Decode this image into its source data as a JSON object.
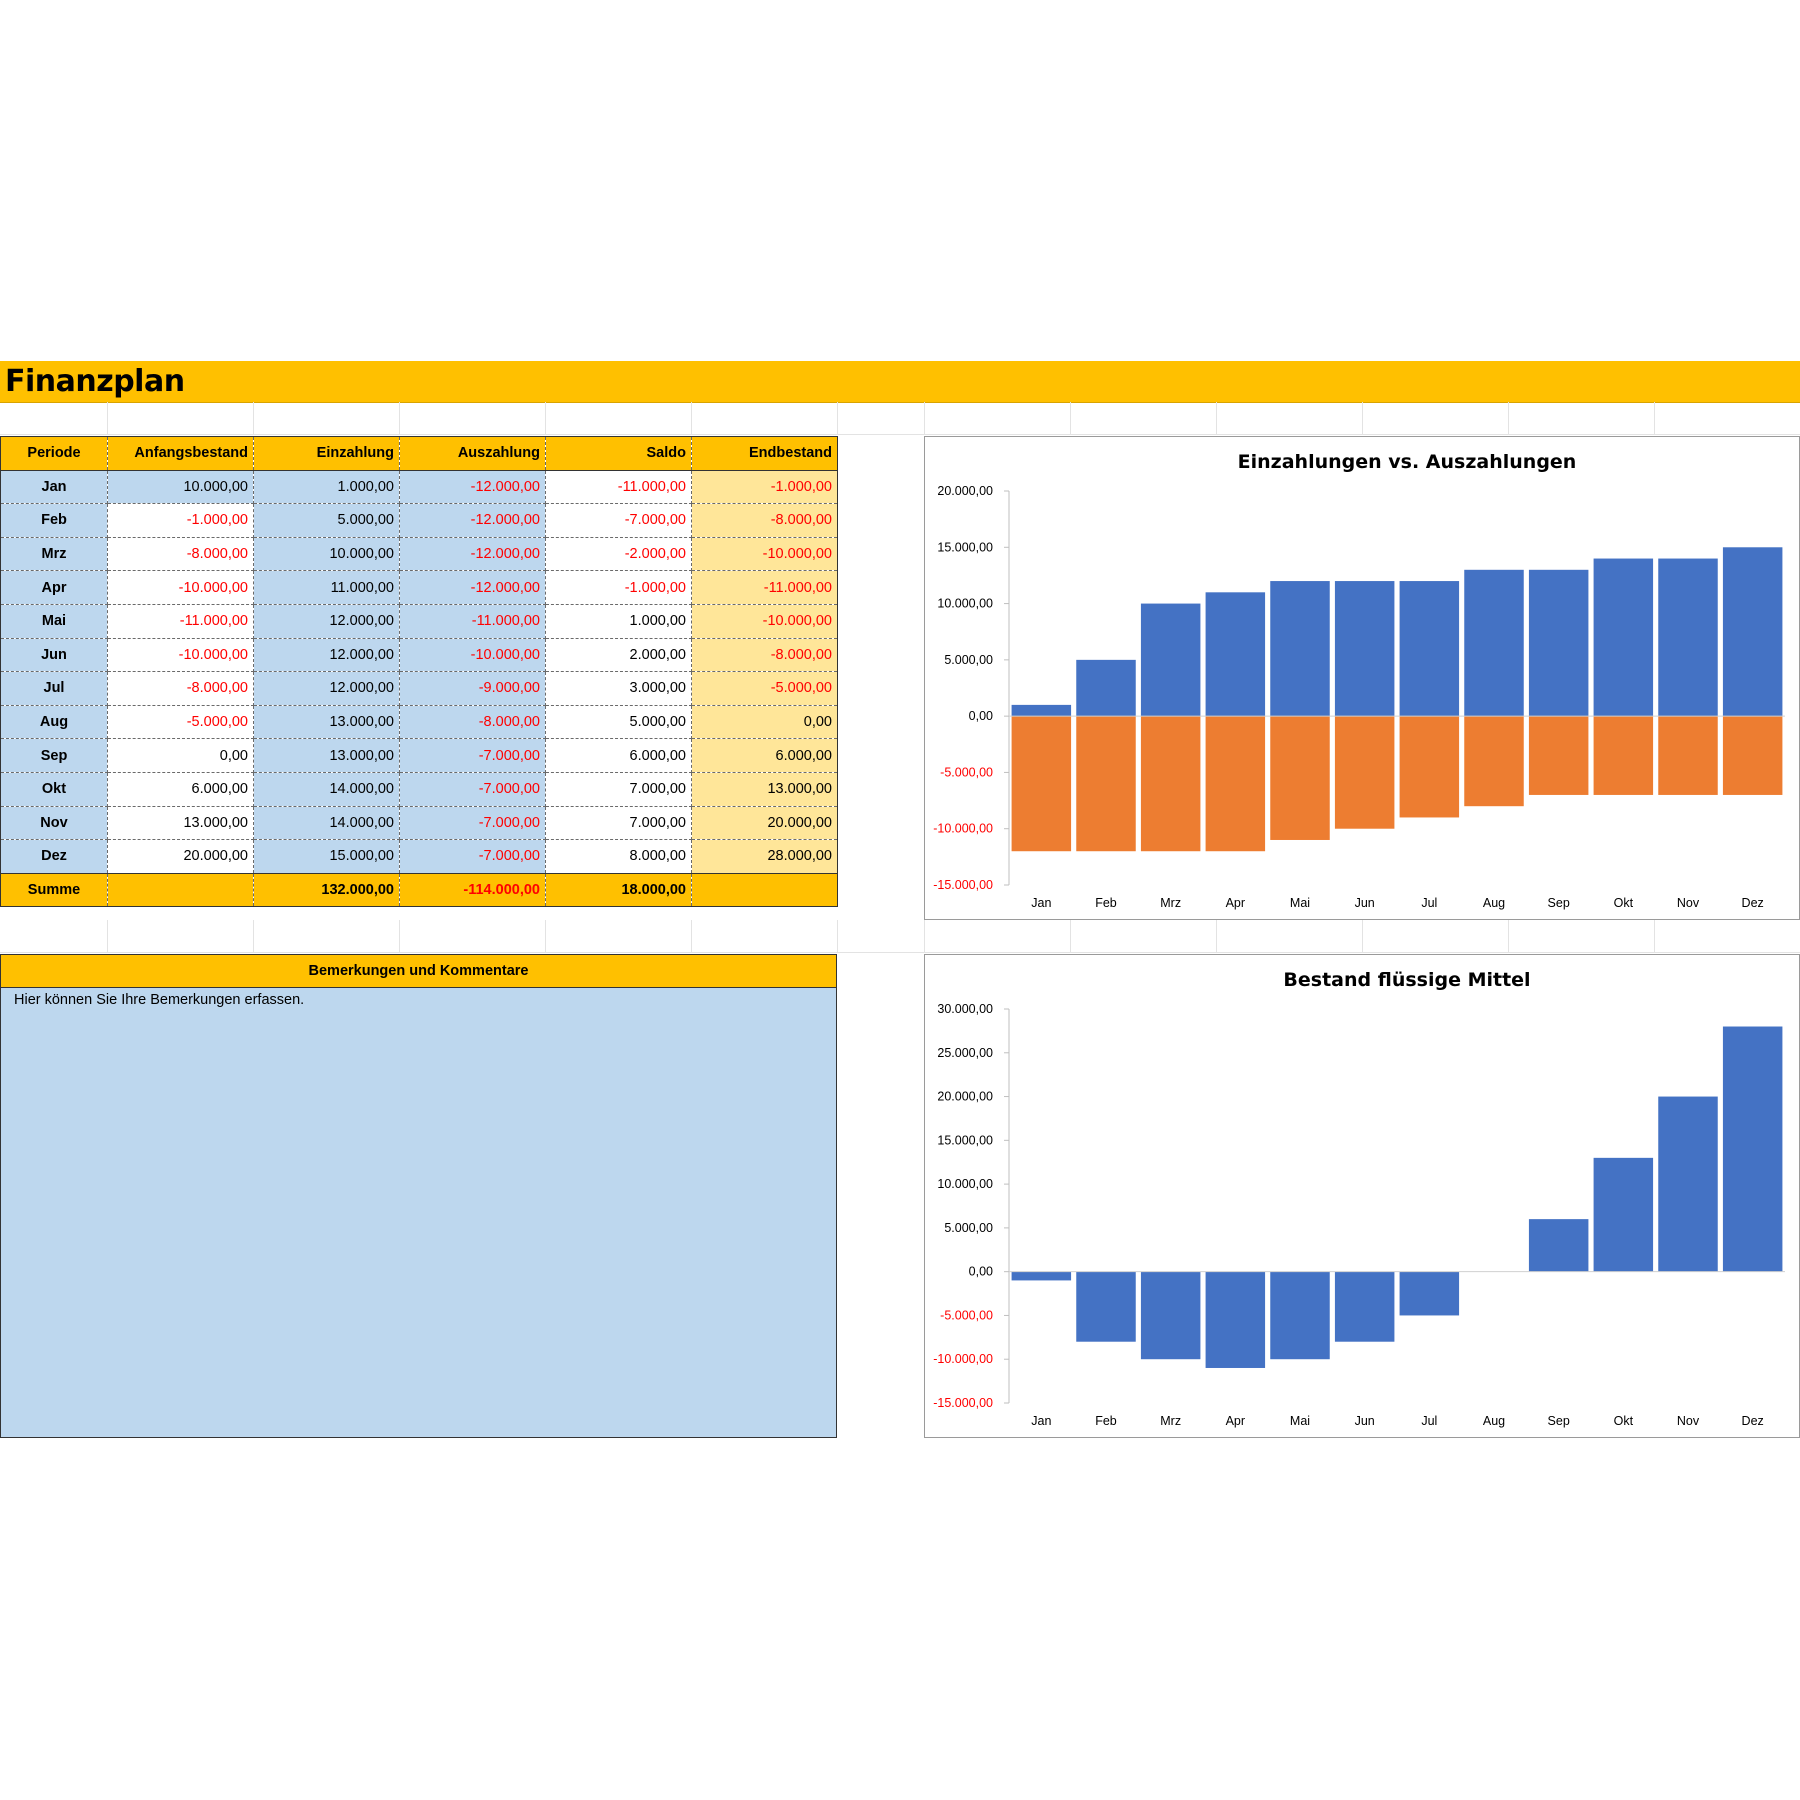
{
  "page": {
    "title": "Finanzplan"
  },
  "table": {
    "headers": [
      "Periode",
      "Anfangsbestand",
      "Einzahlung",
      "Auszahlung",
      "Saldo",
      "Endbestand"
    ],
    "rows": [
      {
        "periode": "Jan",
        "anfang": "10.000,00",
        "einzahlung": "1.000,00",
        "auszahlung": "-12.000,00",
        "saldo": "-11.000,00",
        "endbestand": "-1.000,00"
      },
      {
        "periode": "Feb",
        "anfang": "-1.000,00",
        "einzahlung": "5.000,00",
        "auszahlung": "-12.000,00",
        "saldo": "-7.000,00",
        "endbestand": "-8.000,00"
      },
      {
        "periode": "Mrz",
        "anfang": "-8.000,00",
        "einzahlung": "10.000,00",
        "auszahlung": "-12.000,00",
        "saldo": "-2.000,00",
        "endbestand": "-10.000,00"
      },
      {
        "periode": "Apr",
        "anfang": "-10.000,00",
        "einzahlung": "11.000,00",
        "auszahlung": "-12.000,00",
        "saldo": "-1.000,00",
        "endbestand": "-11.000,00"
      },
      {
        "periode": "Mai",
        "anfang": "-11.000,00",
        "einzahlung": "12.000,00",
        "auszahlung": "-11.000,00",
        "saldo": "1.000,00",
        "endbestand": "-10.000,00"
      },
      {
        "periode": "Jun",
        "anfang": "-10.000,00",
        "einzahlung": "12.000,00",
        "auszahlung": "-10.000,00",
        "saldo": "2.000,00",
        "endbestand": "-8.000,00"
      },
      {
        "periode": "Jul",
        "anfang": "-8.000,00",
        "einzahlung": "12.000,00",
        "auszahlung": "-9.000,00",
        "saldo": "3.000,00",
        "endbestand": "-5.000,00"
      },
      {
        "periode": "Aug",
        "anfang": "-5.000,00",
        "einzahlung": "13.000,00",
        "auszahlung": "-8.000,00",
        "saldo": "5.000,00",
        "endbestand": "0,00"
      },
      {
        "periode": "Sep",
        "anfang": "0,00",
        "einzahlung": "13.000,00",
        "auszahlung": "-7.000,00",
        "saldo": "6.000,00",
        "endbestand": "6.000,00"
      },
      {
        "periode": "Okt",
        "anfang": "6.000,00",
        "einzahlung": "14.000,00",
        "auszahlung": "-7.000,00",
        "saldo": "7.000,00",
        "endbestand": "13.000,00"
      },
      {
        "periode": "Nov",
        "anfang": "13.000,00",
        "einzahlung": "14.000,00",
        "auszahlung": "-7.000,00",
        "saldo": "7.000,00",
        "endbestand": "20.000,00"
      },
      {
        "periode": "Dez",
        "anfang": "20.000,00",
        "einzahlung": "15.000,00",
        "auszahlung": "-7.000,00",
        "saldo": "8.000,00",
        "endbestand": "28.000,00"
      }
    ],
    "sum": {
      "label": "Summe",
      "anfang": "",
      "einzahlung": "132.000,00",
      "auszahlung": "-114.000,00",
      "saldo": "18.000,00",
      "endbestand": ""
    }
  },
  "remarks": {
    "header": "Bemerkungen und Kommentare",
    "text": "Hier können Sie Ihre Bemerkungen erfassen."
  },
  "colors": {
    "accent": "#ffc000",
    "light_blue": "#bdd7ee",
    "light_yellow": "#ffe699",
    "negative": "#ff0000",
    "series_blue": "#4472c4",
    "series_orange": "#ed7d31"
  },
  "chart_data": [
    {
      "type": "bar",
      "title": "Einzahlungen vs. Auszahlungen",
      "categories": [
        "Jan",
        "Feb",
        "Mrz",
        "Apr",
        "Mai",
        "Jun",
        "Jul",
        "Aug",
        "Sep",
        "Okt",
        "Nov",
        "Dez"
      ],
      "series": [
        {
          "name": "Einzahlung",
          "values": [
            1000,
            5000,
            10000,
            11000,
            12000,
            12000,
            12000,
            13000,
            13000,
            14000,
            14000,
            15000
          ]
        },
        {
          "name": "Auszahlung",
          "values": [
            -12000,
            -12000,
            -12000,
            -12000,
            -11000,
            -10000,
            -9000,
            -8000,
            -7000,
            -7000,
            -7000,
            -7000
          ]
        }
      ],
      "ylim": [
        -15000,
        20000
      ],
      "yticks": [
        "20.000,00",
        "15.000,00",
        "10.000,00",
        "5.000,00",
        "0,00",
        "-5.000,00",
        "-10.000,00",
        "-15.000,00"
      ],
      "xlabel": "",
      "ylabel": ""
    },
    {
      "type": "bar",
      "title": "Bestand flüssige Mittel",
      "categories": [
        "Jan",
        "Feb",
        "Mrz",
        "Apr",
        "Mai",
        "Jun",
        "Jul",
        "Aug",
        "Sep",
        "Okt",
        "Nov",
        "Dez"
      ],
      "series": [
        {
          "name": "Endbestand",
          "values": [
            -1000,
            -8000,
            -10000,
            -11000,
            -10000,
            -8000,
            -5000,
            0,
            6000,
            13000,
            20000,
            28000
          ]
        }
      ],
      "ylim": [
        -15000,
        30000
      ],
      "yticks": [
        "30.000,00",
        "25.000,00",
        "20.000,00",
        "15.000,00",
        "10.000,00",
        "5.000,00",
        "0,00",
        "-5.000,00",
        "-10.000,00",
        "-15.000,00"
      ],
      "xlabel": "",
      "ylabel": ""
    }
  ]
}
